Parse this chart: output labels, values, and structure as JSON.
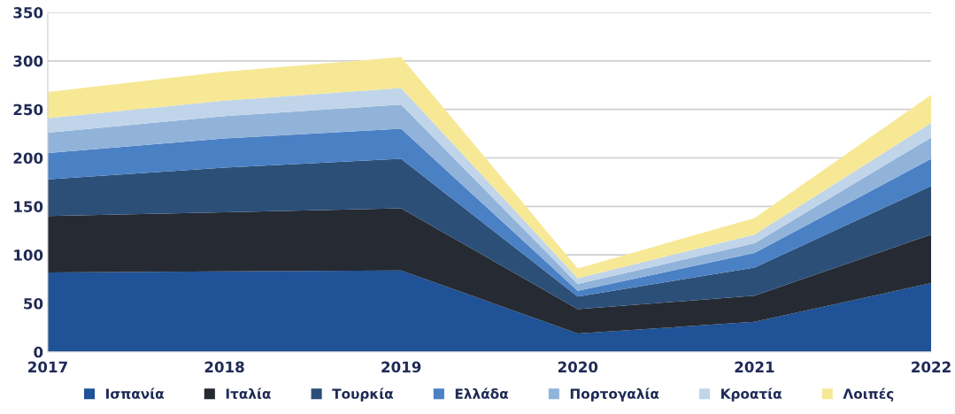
{
  "chart_data": {
    "type": "area",
    "stacked": true,
    "x": [
      2017,
      2018,
      2019,
      2020,
      2021,
      2022
    ],
    "xlim": [
      2017,
      2022
    ],
    "xticks": [
      2017,
      2018,
      2019,
      2020,
      2021,
      2022
    ],
    "ylim": [
      0,
      350
    ],
    "yticks": [
      0,
      50,
      100,
      150,
      200,
      250,
      300,
      350
    ],
    "grid": "y",
    "legend": "bottom",
    "series": [
      {
        "name": "Ισπανία",
        "color": "#1f5296",
        "values": [
          82,
          83,
          84,
          19,
          31,
          71
        ]
      },
      {
        "name": "Ιταλία",
        "color": "#252a33",
        "values": [
          58,
          61,
          64,
          25,
          27,
          50
        ]
      },
      {
        "name": "Τουρκία",
        "color": "#2c4f78",
        "values": [
          38,
          46,
          51,
          13,
          29,
          50
        ]
      },
      {
        "name": "Ελλάδα",
        "color": "#4a80c4",
        "values": [
          27,
          30,
          31,
          6,
          15,
          28
        ]
      },
      {
        "name": "Πορτογαλία",
        "color": "#91b3da",
        "values": [
          21,
          23,
          25,
          7,
          10,
          22
        ]
      },
      {
        "name": "Κροατία",
        "color": "#c1d5ea",
        "values": [
          15,
          16,
          17,
          6,
          9,
          15
        ]
      },
      {
        "name": "Λοιπές",
        "color": "#f7e896",
        "values": [
          27,
          30,
          32,
          10,
          17,
          29
        ]
      }
    ]
  }
}
